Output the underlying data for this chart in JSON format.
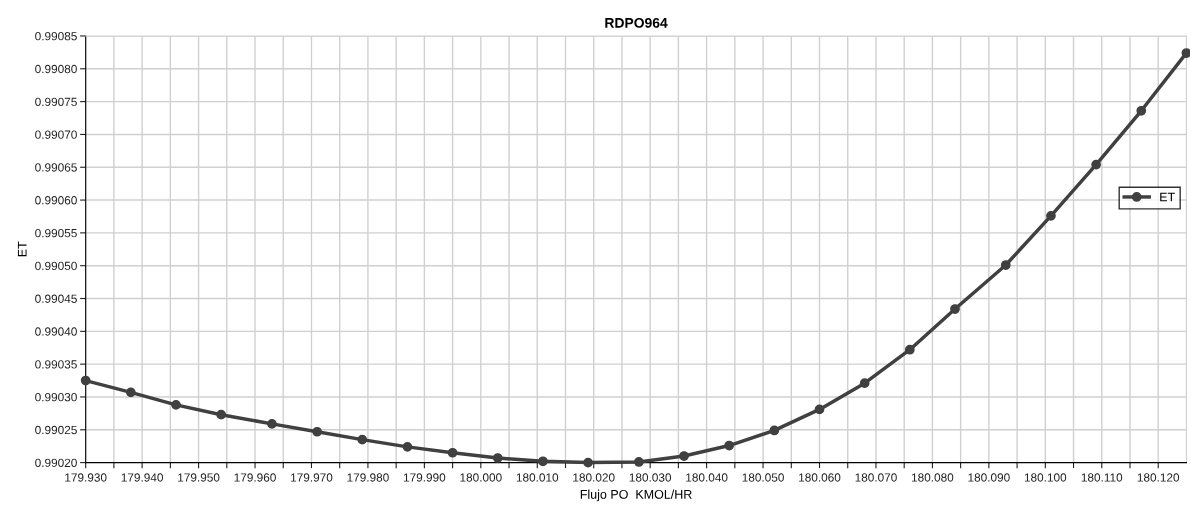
{
  "chart_data": {
    "type": "line",
    "title": "RDPO964",
    "xlabel": "Flujo PO  KMOL/HR",
    "ylabel": "ET",
    "x": [
      179.93,
      179.938,
      179.946,
      179.954,
      179.963,
      179.971,
      179.979,
      179.987,
      179.995,
      180.003,
      180.011,
      180.019,
      180.028,
      180.036,
      180.044,
      180.052,
      180.06,
      180.068,
      180.076,
      180.084,
      180.093,
      180.101,
      180.109,
      180.117,
      180.125
    ],
    "series": [
      {
        "name": "ET",
        "color": "#404040",
        "values": [
          0.990325,
          0.990307,
          0.990288,
          0.990273,
          0.990259,
          0.990247,
          0.990235,
          0.990224,
          0.990215,
          0.990207,
          0.990202,
          0.9902,
          0.990201,
          0.99021,
          0.990226,
          0.990249,
          0.990281,
          0.990321,
          0.990372,
          0.990434,
          0.990501,
          0.990576,
          0.990654,
          0.990736,
          0.990824
        ]
      }
    ],
    "xlim": [
      179.93,
      180.125
    ],
    "xticks": [
      {
        "value": 179.93,
        "label": "179.930"
      },
      {
        "value": 179.935,
        "label": null
      },
      {
        "value": 179.94,
        "label": "179.940"
      },
      {
        "value": 179.945,
        "label": null
      },
      {
        "value": 179.95,
        "label": "179.950"
      },
      {
        "value": 179.955,
        "label": null
      },
      {
        "value": 179.96,
        "label": "179.960"
      },
      {
        "value": 179.965,
        "label": null
      },
      {
        "value": 179.97,
        "label": "179.970"
      },
      {
        "value": 179.975,
        "label": null
      },
      {
        "value": 179.98,
        "label": "179.980"
      },
      {
        "value": 179.985,
        "label": null
      },
      {
        "value": 179.99,
        "label": "179.990"
      },
      {
        "value": 179.995,
        "label": null
      },
      {
        "value": 180.0,
        "label": "180.000"
      },
      {
        "value": 180.005,
        "label": null
      },
      {
        "value": 180.01,
        "label": "180.010"
      },
      {
        "value": 180.015,
        "label": null
      },
      {
        "value": 180.02,
        "label": "180.020"
      },
      {
        "value": 180.025,
        "label": null
      },
      {
        "value": 180.03,
        "label": "180.030"
      },
      {
        "value": 180.035,
        "label": null
      },
      {
        "value": 180.04,
        "label": "180.040"
      },
      {
        "value": 180.045,
        "label": null
      },
      {
        "value": 180.05,
        "label": "180.050"
      },
      {
        "value": 180.055,
        "label": null
      },
      {
        "value": 180.06,
        "label": "180.060"
      },
      {
        "value": 180.065,
        "label": null
      },
      {
        "value": 180.07,
        "label": "180.070"
      },
      {
        "value": 180.075,
        "label": null
      },
      {
        "value": 180.08,
        "label": "180.080"
      },
      {
        "value": 180.085,
        "label": null
      },
      {
        "value": 180.09,
        "label": "180.090"
      },
      {
        "value": 180.095,
        "label": null
      },
      {
        "value": 180.1,
        "label": "180.100"
      },
      {
        "value": 180.105,
        "label": null
      },
      {
        "value": 180.11,
        "label": "180.110"
      },
      {
        "value": 180.115,
        "label": null
      },
      {
        "value": 180.12,
        "label": "180.120"
      }
    ],
    "ylim": [
      0.9902,
      0.99085
    ],
    "yticks": [
      {
        "value": 0.9902,
        "label": "0.99020"
      },
      0.99025,
      {
        "value": 0.9903,
        "label": "0.99030"
      },
      0.99035,
      {
        "value": 0.9904,
        "label": "0.99040"
      },
      0.99045,
      {
        "value": 0.9905,
        "label": "0.99050"
      },
      0.99055,
      {
        "value": 0.9906,
        "label": "0.99060"
      },
      0.99065,
      {
        "value": 0.9907,
        "label": "0.99070"
      },
      0.99075,
      {
        "value": 0.9908,
        "label": "0.99080"
      },
      0.99085
    ],
    "grid": true,
    "legend": "right",
    "marker": "circle",
    "line_style": "solid"
  }
}
